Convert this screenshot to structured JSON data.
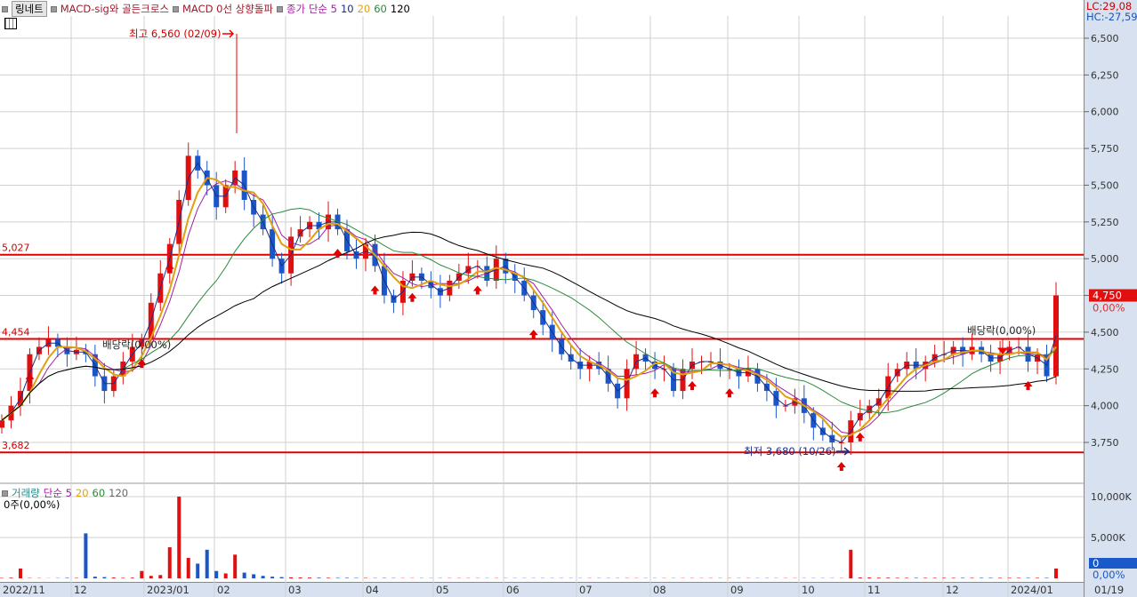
{
  "legend": {
    "tab": "링네트",
    "items": [
      {
        "label": "MACD-sig와 골든크로스",
        "color": "#a0182a"
      },
      {
        "label": "MACD 0선 상향돌파",
        "color": "#a0182a"
      }
    ],
    "ma_label": "종가 단순 5",
    "ma_periods": [
      "10",
      "20",
      "60",
      "120"
    ],
    "ma_colors": {
      "5": "#a020a0",
      "10": "#1a2e8a",
      "20": "#e0a010",
      "60": "#2a8a3a",
      "120": "#000000"
    }
  },
  "indicators": {
    "lc": "LC:29,08",
    "hc": "HC:-27,59"
  },
  "colors": {
    "up": "#e01010",
    "down": "#1a56c8",
    "hline": "#e00000",
    "axis_bg": "#d7e1ef",
    "grid": "#d0d0d0"
  },
  "chart_data": {
    "type": "candlestick",
    "y_ticks": [
      "6,500",
      "6,250",
      "6,000",
      "5,750",
      "5,500",
      "5,250",
      "5,000",
      "4,750",
      "4,500",
      "4,250",
      "4,000",
      "3,750"
    ],
    "ylim": [
      3600,
      6650
    ],
    "x_ticks": [
      "2022/11",
      "12",
      "2023/01",
      "02",
      "03",
      "04",
      "05",
      "06",
      "07",
      "08",
      "09",
      "10",
      "11",
      "12",
      "2024/01"
    ],
    "last_date": "01/19",
    "closes": [
      3900,
      4000,
      4100,
      4350,
      4400,
      4450,
      4400,
      4350,
      4380,
      4350,
      4200,
      4100,
      4200,
      4300,
      4400,
      4450,
      4700,
      4900,
      5100,
      5400,
      5700,
      5600,
      5500,
      5350,
      5500,
      5600,
      5400,
      5300,
      5200,
      5000,
      4900,
      5150,
      5200,
      5250,
      5200,
      5300,
      5200,
      5050,
      5000,
      5100,
      4950,
      4750,
      4700,
      4850,
      4900,
      4850,
      4800,
      4750,
      4850,
      4900,
      4950,
      4950,
      4850,
      5000,
      4900,
      4850,
      4750,
      4650,
      4550,
      4450,
      4350,
      4300,
      4250,
      4300,
      4250,
      4150,
      4050,
      4250,
      4350,
      4300,
      4250,
      4250,
      4100,
      4250,
      4300,
      4300,
      4300,
      4250,
      4250,
      4200,
      4250,
      4150,
      4100,
      4000,
      4000,
      4050,
      3950,
      3850,
      3800,
      3750,
      3750,
      3900,
      3950,
      4000,
      4050,
      4200,
      4250,
      4300,
      4250,
      4300,
      4350,
      4350,
      4400,
      4350,
      4400,
      4350,
      4300,
      4350,
      4400,
      4400,
      4300,
      4350,
      4200,
      4750
    ],
    "hlines": [
      {
        "value": 5027,
        "label": "5,027"
      },
      {
        "value": 4454,
        "label": "4,454"
      },
      {
        "value": 3682,
        "label": "3,682"
      }
    ],
    "annotations": {
      "high": "최고 6,560 (02/09)",
      "low": "최저 3,680 (10/26)",
      "dividend": "배당락(0,00%)",
      "dividend2": "배당락(0,00%)"
    },
    "current": {
      "price": "4,750",
      "change": "0,00%"
    },
    "signals": [
      3,
      15,
      18,
      36,
      40,
      44,
      51,
      57,
      70,
      74,
      78,
      90,
      92,
      110
    ],
    "volume": {
      "legend": "거래량",
      "ma_label": "단순 5",
      "ma_periods": [
        "20",
        "60",
        "120"
      ],
      "info": "0주(0,00%)",
      "y_ticks": [
        "10,000K",
        "5,000K"
      ],
      "current": "0",
      "current_pct": "0,00%",
      "values": [
        50,
        80,
        1200,
        40,
        30,
        20,
        30,
        60,
        50,
        5500,
        200,
        150,
        100,
        60,
        80,
        900,
        300,
        400,
        3800,
        10000,
        2500,
        1800,
        3500,
        900,
        600,
        2900,
        700,
        500,
        300,
        200,
        150,
        120,
        100,
        90,
        80,
        70,
        60,
        60,
        50,
        50,
        40,
        40,
        40,
        30,
        30,
        30,
        30,
        30,
        30,
        30,
        30,
        30,
        30,
        30,
        30,
        30,
        30,
        30,
        30,
        30,
        30,
        30,
        30,
        30,
        30,
        30,
        30,
        30,
        30,
        30,
        30,
        30,
        30,
        30,
        30,
        30,
        30,
        30,
        30,
        30,
        30,
        30,
        30,
        30,
        30,
        30,
        30,
        30,
        30,
        30,
        30,
        3500,
        100,
        100,
        80,
        80,
        60,
        60,
        60,
        60,
        60,
        60,
        60,
        60,
        60,
        60,
        60,
        60,
        60,
        60,
        60,
        60,
        60,
        1200
      ]
    }
  }
}
